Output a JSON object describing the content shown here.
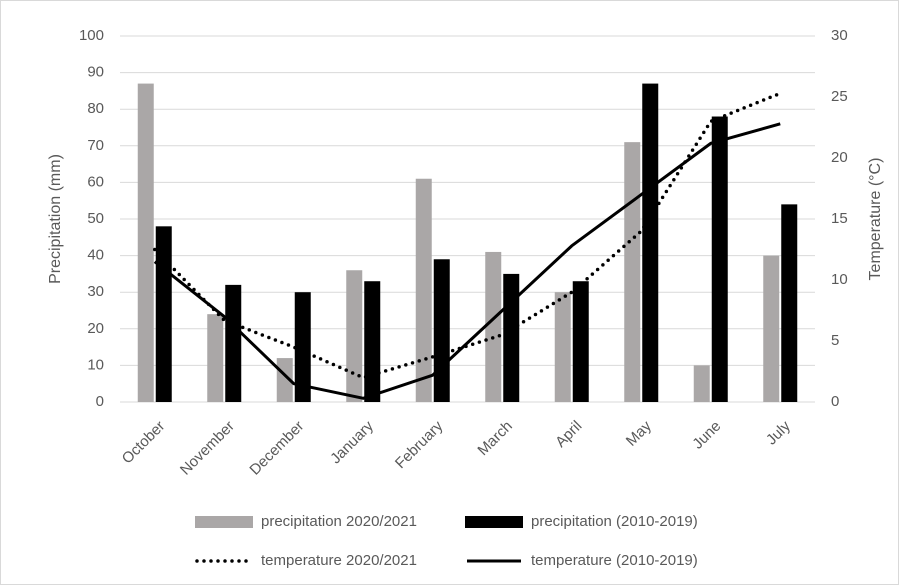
{
  "chart_data": {
    "type": "bar",
    "categories": [
      "October",
      "November",
      "December",
      "January",
      "February",
      "March",
      "April",
      "May",
      "June",
      "July"
    ],
    "y_label": "Precipitation (mm)",
    "y2_label": "Temperature (°C)",
    "ylim": [
      0,
      100
    ],
    "yticks": [
      0,
      10,
      20,
      30,
      40,
      50,
      60,
      70,
      80,
      90,
      100
    ],
    "y2lim": [
      0,
      30
    ],
    "y2ticks": [
      0,
      5,
      10,
      15,
      20,
      25,
      30
    ],
    "grid": true,
    "legend": "bottom",
    "series": [
      {
        "name": "precipitation 2020/2021",
        "type": "bar",
        "color": "#aaa7a7",
        "values": [
          87,
          24,
          12,
          36,
          61,
          41,
          30,
          71,
          10,
          40
        ]
      },
      {
        "name": "precipitation (2010-2019)",
        "type": "bar",
        "color": "#000000",
        "values": [
          48,
          32,
          30,
          33,
          39,
          35,
          33,
          87,
          78,
          54
        ]
      },
      {
        "name": "temperature 2020/2021",
        "type": "line",
        "style": "dotted",
        "axis": "y2",
        "color": "#000000",
        "values": [
          12.5,
          6.7,
          4.5,
          2.0,
          3.7,
          5.5,
          9.0,
          14.0,
          23.0,
          25.3
        ]
      },
      {
        "name": "temperature (2010-2019)",
        "type": "line",
        "style": "solid",
        "axis": "y2",
        "color": "#000000",
        "values": [
          11.5,
          7.0,
          1.5,
          0.3,
          2.2,
          7.5,
          12.8,
          17.0,
          21.2,
          22.8
        ]
      }
    ]
  }
}
